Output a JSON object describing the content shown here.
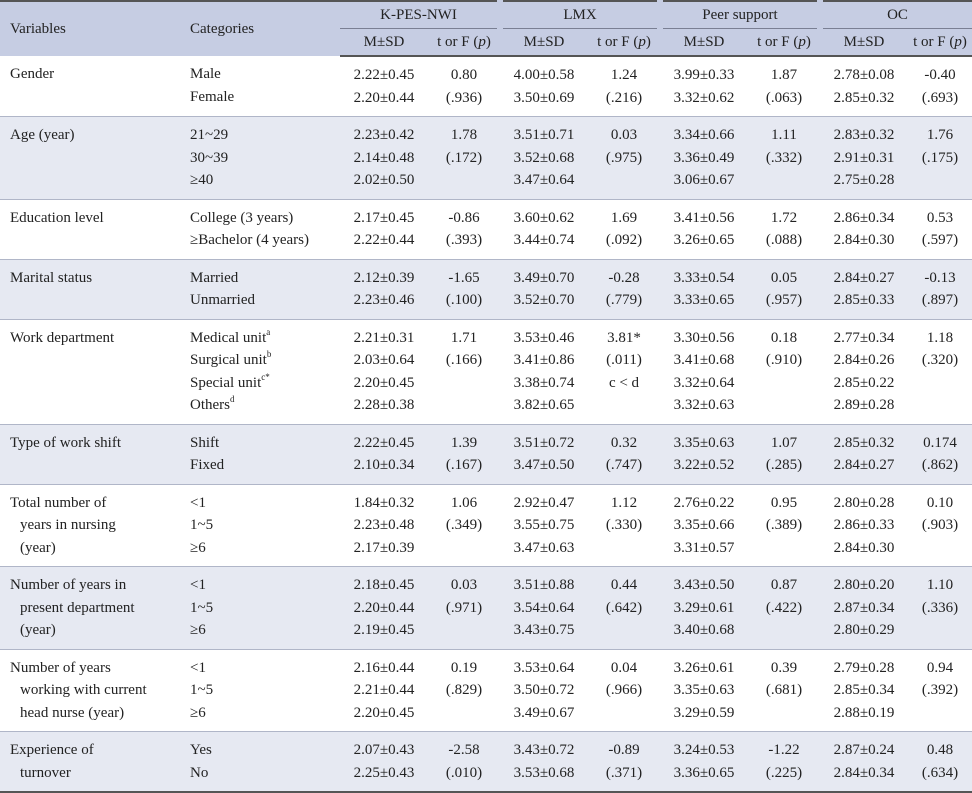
{
  "header": {
    "variables": "Variables",
    "categories": "Categories",
    "groups": [
      "K-PES-NWI",
      "LMX",
      "Peer support",
      "OC"
    ],
    "msd": "M±SD",
    "tf": "t or F (",
    "p": "p",
    "tf_close": ")"
  },
  "rows": [
    {
      "variable": [
        "Gender"
      ],
      "categories": [
        "Male",
        "Female"
      ],
      "kpes": {
        "msd": [
          "2.22±0.45",
          "2.20±0.44"
        ],
        "t": [
          "0.80",
          "(.936)"
        ]
      },
      "lmx": {
        "msd": [
          "4.00±0.58",
          "3.50±0.69"
        ],
        "t": [
          "1.24",
          "(.216)"
        ]
      },
      "peer": {
        "msd": [
          "3.99±0.33",
          "3.32±0.62"
        ],
        "t": [
          "1.87",
          "(.063)"
        ]
      },
      "oc": {
        "msd": [
          "2.78±0.08",
          "2.85±0.32"
        ],
        "t": [
          "-0.40",
          "(.693)"
        ]
      }
    },
    {
      "variable": [
        "Age (year)"
      ],
      "categories": [
        "21~29",
        "30~39",
        "≥40"
      ],
      "kpes": {
        "msd": [
          "2.23±0.42",
          "2.14±0.48",
          "2.02±0.50"
        ],
        "t": [
          "1.78",
          "(.172)"
        ]
      },
      "lmx": {
        "msd": [
          "3.51±0.71",
          "3.52±0.68",
          "3.47±0.64"
        ],
        "t": [
          "0.03",
          "(.975)"
        ]
      },
      "peer": {
        "msd": [
          "3.34±0.66",
          "3.36±0.49",
          "3.06±0.67"
        ],
        "t": [
          "1.11",
          "(.332)"
        ]
      },
      "oc": {
        "msd": [
          "2.83±0.32",
          "2.91±0.31",
          "2.75±0.28"
        ],
        "t": [
          "1.76",
          "(.175)"
        ]
      }
    },
    {
      "variable": [
        "Education level"
      ],
      "categories": [
        "College (3 years)",
        "≥Bachelor (4 years)"
      ],
      "kpes": {
        "msd": [
          "2.17±0.45",
          "2.22±0.44"
        ],
        "t": [
          "-0.86",
          "(.393)"
        ]
      },
      "lmx": {
        "msd": [
          "3.60±0.62",
          "3.44±0.74"
        ],
        "t": [
          "1.69",
          "(.092)"
        ]
      },
      "peer": {
        "msd": [
          "3.41±0.56",
          "3.26±0.65"
        ],
        "t": [
          "1.72",
          "(.088)"
        ]
      },
      "oc": {
        "msd": [
          "2.86±0.34",
          "2.84±0.30"
        ],
        "t": [
          "0.53",
          "(.597)"
        ]
      }
    },
    {
      "variable": [
        "Marital status"
      ],
      "categories": [
        "Married",
        "Unmarried"
      ],
      "kpes": {
        "msd": [
          "2.12±0.39",
          "2.23±0.46"
        ],
        "t": [
          "-1.65",
          "(.100)"
        ]
      },
      "lmx": {
        "msd": [
          "3.49±0.70",
          "3.52±0.70"
        ],
        "t": [
          "-0.28",
          "(.779)"
        ]
      },
      "peer": {
        "msd": [
          "3.33±0.54",
          "3.33±0.65"
        ],
        "t": [
          "0.05",
          "(.957)"
        ]
      },
      "oc": {
        "msd": [
          "2.84±0.27",
          "2.85±0.33"
        ],
        "t": [
          "-0.13",
          "(.897)"
        ]
      }
    },
    {
      "variable": [
        "Work department"
      ],
      "categories": [
        "Medical unit",
        "Surgical unit",
        "Special unit",
        "Others"
      ],
      "category_sups": [
        "a",
        "b",
        "c*",
        "d"
      ],
      "kpes": {
        "msd": [
          "2.21±0.31",
          "2.03±0.64",
          "2.20±0.45",
          "2.28±0.38"
        ],
        "t": [
          "1.71",
          "(.166)"
        ]
      },
      "lmx": {
        "msd": [
          "3.53±0.46",
          "3.41±0.86",
          "3.38±0.74",
          "3.82±0.65"
        ],
        "t": [
          "3.81*",
          "(.011)",
          "c < d"
        ]
      },
      "peer": {
        "msd": [
          "3.30±0.56",
          "3.41±0.68",
          "3.32±0.64",
          "3.32±0.63"
        ],
        "t": [
          "0.18",
          "(.910)"
        ]
      },
      "oc": {
        "msd": [
          "2.77±0.34",
          "2.84±0.26",
          "2.85±0.22",
          "2.89±0.28"
        ],
        "t": [
          "1.18",
          "(.320)"
        ]
      }
    },
    {
      "variable": [
        "Type of work shift"
      ],
      "categories": [
        "Shift",
        "Fixed"
      ],
      "kpes": {
        "msd": [
          "2.22±0.45",
          "2.10±0.34"
        ],
        "t": [
          "1.39",
          "(.167)"
        ]
      },
      "lmx": {
        "msd": [
          "3.51±0.72",
          "3.47±0.50"
        ],
        "t": [
          "0.32",
          "(.747)"
        ]
      },
      "peer": {
        "msd": [
          "3.35±0.63",
          "3.22±0.52"
        ],
        "t": [
          "1.07",
          "(.285)"
        ]
      },
      "oc": {
        "msd": [
          "2.85±0.32",
          "2.84±0.27"
        ],
        "t": [
          "0.174",
          "(.862)"
        ]
      }
    },
    {
      "variable": [
        "Total number of",
        "years in nursing",
        "(year)"
      ],
      "categories": [
        "<1",
        "1~5",
        "≥6"
      ],
      "kpes": {
        "msd": [
          "1.84±0.32",
          "2.23±0.48",
          "2.17±0.39"
        ],
        "t": [
          "1.06",
          "(.349)"
        ]
      },
      "lmx": {
        "msd": [
          "2.92±0.47",
          "3.55±0.75",
          "3.47±0.63"
        ],
        "t": [
          "1.12",
          "(.330)"
        ]
      },
      "peer": {
        "msd": [
          "2.76±0.22",
          "3.35±0.66",
          "3.31±0.57"
        ],
        "t": [
          "0.95",
          "(.389)"
        ]
      },
      "oc": {
        "msd": [
          "2.80±0.28",
          "2.86±0.33",
          "2.84±0.30"
        ],
        "t": [
          "0.10",
          "(.903)"
        ]
      }
    },
    {
      "variable": [
        "Number of years in",
        "present department",
        "(year)"
      ],
      "categories": [
        "<1",
        "1~5",
        "≥6"
      ],
      "kpes": {
        "msd": [
          "2.18±0.45",
          "2.20±0.44",
          "2.19±0.45"
        ],
        "t": [
          "0.03",
          "(.971)"
        ]
      },
      "lmx": {
        "msd": [
          "3.51±0.88",
          "3.54±0.64",
          "3.43±0.75"
        ],
        "t": [
          "0.44",
          "(.642)"
        ]
      },
      "peer": {
        "msd": [
          "3.43±0.50",
          "3.29±0.61",
          "3.40±0.68"
        ],
        "t": [
          "0.87",
          "(.422)"
        ]
      },
      "oc": {
        "msd": [
          "2.80±0.20",
          "2.87±0.34",
          "2.80±0.29"
        ],
        "t": [
          "1.10",
          "(.336)"
        ]
      }
    },
    {
      "variable": [
        "Number of years",
        "working with current",
        "head nurse (year)"
      ],
      "categories": [
        "<1",
        "1~5",
        "≥6"
      ],
      "kpes": {
        "msd": [
          "2.16±0.44",
          "2.21±0.44",
          "2.20±0.45"
        ],
        "t": [
          "0.19",
          "(.829)"
        ]
      },
      "lmx": {
        "msd": [
          "3.53±0.64",
          "3.50±0.72",
          "3.49±0.67"
        ],
        "t": [
          "0.04",
          "(.966)"
        ]
      },
      "peer": {
        "msd": [
          "3.26±0.61",
          "3.35±0.63",
          "3.29±0.59"
        ],
        "t": [
          "0.39",
          "(.681)"
        ]
      },
      "oc": {
        "msd": [
          "2.79±0.28",
          "2.85±0.34",
          "2.88±0.19"
        ],
        "t": [
          "0.94",
          "(.392)"
        ]
      }
    },
    {
      "variable": [
        "Experience of",
        "turnover"
      ],
      "categories": [
        "Yes",
        "No"
      ],
      "kpes": {
        "msd": [
          "2.07±0.43",
          "2.25±0.43"
        ],
        "t": [
          "-2.58",
          "(.010)"
        ]
      },
      "lmx": {
        "msd": [
          "3.43±0.72",
          "3.53±0.68"
        ],
        "t": [
          "-0.89",
          "(.371)"
        ]
      },
      "peer": {
        "msd": [
          "3.24±0.53",
          "3.36±0.65"
        ],
        "t": [
          "-1.22",
          "(.225)"
        ]
      },
      "oc": {
        "msd": [
          "2.87±0.24",
          "2.84±0.34"
        ],
        "t": [
          "0.48",
          "(.634)"
        ]
      }
    }
  ]
}
